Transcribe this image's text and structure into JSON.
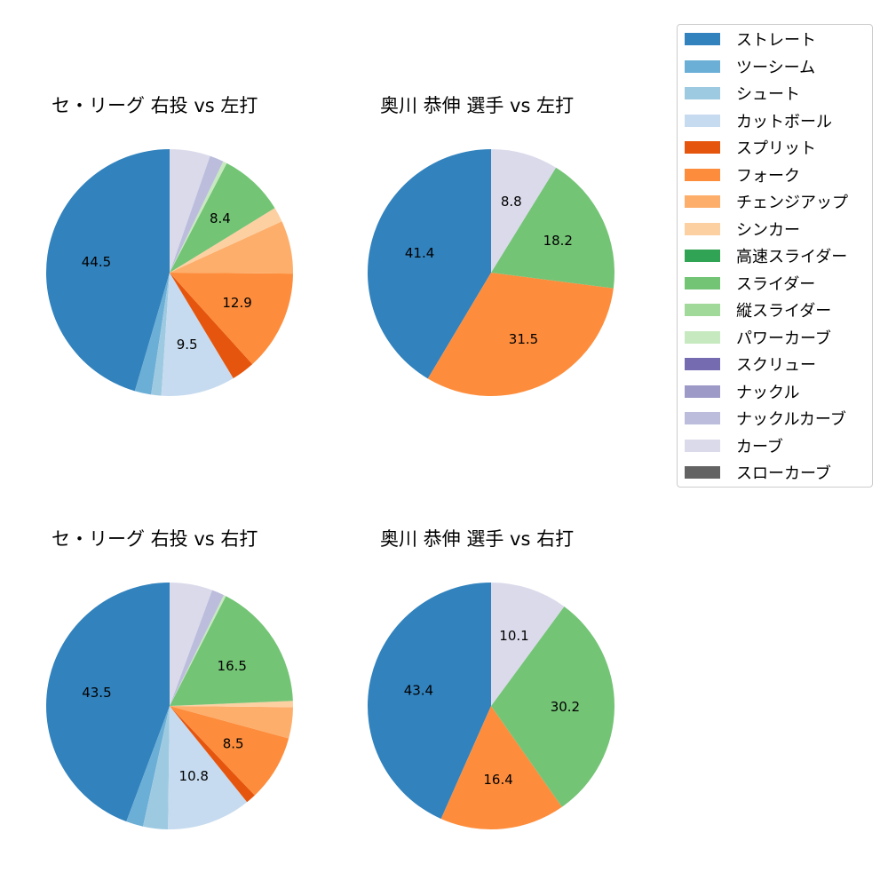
{
  "legend": {
    "entries": [
      {
        "label": "ストレート",
        "color": "#3182bd"
      },
      {
        "label": "ツーシーム",
        "color": "#6baed6"
      },
      {
        "label": "シュート",
        "color": "#9ecae1"
      },
      {
        "label": "カットボール",
        "color": "#c6dbef"
      },
      {
        "label": "スプリット",
        "color": "#e6550d"
      },
      {
        "label": "フォーク",
        "color": "#fd8d3c"
      },
      {
        "label": "チェンジアップ",
        "color": "#fdae6b"
      },
      {
        "label": "シンカー",
        "color": "#fdd0a2"
      },
      {
        "label": "高速スライダー",
        "color": "#31a354"
      },
      {
        "label": "スライダー",
        "color": "#74c476"
      },
      {
        "label": "縦スライダー",
        "color": "#a1d99b"
      },
      {
        "label": "パワーカーブ",
        "color": "#c7e9c0"
      },
      {
        "label": "スクリュー",
        "color": "#756bb1"
      },
      {
        "label": "ナックル",
        "color": "#9e9ac8"
      },
      {
        "label": "ナックルカーブ",
        "color": "#bcbddc"
      },
      {
        "label": "カーブ",
        "color": "#dadaeb"
      },
      {
        "label": "スローカーブ",
        "color": "#636363"
      }
    ]
  },
  "chart_data": [
    {
      "type": "pie",
      "title": "セ・リーグ 右投 vs 左打",
      "slices": [
        {
          "label": "ストレート",
          "value": 44.5,
          "color": "#3182bd",
          "show_label": true
        },
        {
          "label": "ツーシーム",
          "value": 2.1,
          "color": "#6baed6",
          "show_label": false
        },
        {
          "label": "シュート",
          "value": 1.3,
          "color": "#9ecae1",
          "show_label": false
        },
        {
          "label": "カットボール",
          "value": 9.5,
          "color": "#c6dbef",
          "show_label": true
        },
        {
          "label": "スプリット",
          "value": 3.0,
          "color": "#e6550d",
          "show_label": false
        },
        {
          "label": "フォーク",
          "value": 12.9,
          "color": "#fd8d3c",
          "show_label": true
        },
        {
          "label": "チェンジアップ",
          "value": 6.8,
          "color": "#fdae6b",
          "show_label": false
        },
        {
          "label": "シンカー",
          "value": 1.9,
          "color": "#fdd0a2",
          "show_label": false
        },
        {
          "label": "スライダー",
          "value": 8.4,
          "color": "#74c476",
          "show_label": true
        },
        {
          "label": "パワーカーブ",
          "value": 0.5,
          "color": "#c7e9c0",
          "show_label": false
        },
        {
          "label": "ナックルカーブ",
          "value": 1.8,
          "color": "#bcbddc",
          "show_label": false
        },
        {
          "label": "カーブ",
          "value": 5.2,
          "color": "#dadaeb",
          "show_label": false
        }
      ]
    },
    {
      "type": "pie",
      "title": "奥川 恭伸 選手 vs 左打",
      "slices": [
        {
          "label": "ストレート",
          "value": 41.4,
          "color": "#3182bd",
          "show_label": true
        },
        {
          "label": "フォーク",
          "value": 31.5,
          "color": "#fd8d3c",
          "show_label": true
        },
        {
          "label": "スライダー",
          "value": 18.2,
          "color": "#74c476",
          "show_label": true
        },
        {
          "label": "カーブ",
          "value": 8.8,
          "color": "#dadaeb",
          "show_label": true
        }
      ]
    },
    {
      "type": "pie",
      "title": "セ・リーグ 右投 vs 右打",
      "slices": [
        {
          "label": "ストレート",
          "value": 43.5,
          "color": "#3182bd",
          "show_label": true
        },
        {
          "label": "ツーシーム",
          "value": 2.2,
          "color": "#6baed6",
          "show_label": false
        },
        {
          "label": "シュート",
          "value": 3.2,
          "color": "#9ecae1",
          "show_label": false
        },
        {
          "label": "カットボール",
          "value": 10.8,
          "color": "#c6dbef",
          "show_label": true
        },
        {
          "label": "スプリット",
          "value": 1.3,
          "color": "#e6550d",
          "show_label": false
        },
        {
          "label": "フォーク",
          "value": 8.5,
          "color": "#fd8d3c",
          "show_label": true
        },
        {
          "label": "チェンジアップ",
          "value": 4.0,
          "color": "#fdae6b",
          "show_label": false
        },
        {
          "label": "シンカー",
          "value": 0.8,
          "color": "#fdd0a2",
          "show_label": false
        },
        {
          "label": "スライダー",
          "value": 16.5,
          "color": "#74c476",
          "show_label": true
        },
        {
          "label": "パワーカーブ",
          "value": 0.3,
          "color": "#c7e9c0",
          "show_label": false
        },
        {
          "label": "ナックルカーブ",
          "value": 1.6,
          "color": "#bcbddc",
          "show_label": false
        },
        {
          "label": "カーブ",
          "value": 5.5,
          "color": "#dadaeb",
          "show_label": false
        }
      ]
    },
    {
      "type": "pie",
      "title": "奥川 恭伸 選手 vs 右打",
      "slices": [
        {
          "label": "ストレート",
          "value": 43.4,
          "color": "#3182bd",
          "show_label": true
        },
        {
          "label": "フォーク",
          "value": 16.4,
          "color": "#fd8d3c",
          "show_label": true
        },
        {
          "label": "スライダー",
          "value": 30.2,
          "color": "#74c476",
          "show_label": true
        },
        {
          "label": "カーブ",
          "value": 10.1,
          "color": "#dadaeb",
          "show_label": true
        }
      ]
    }
  ]
}
